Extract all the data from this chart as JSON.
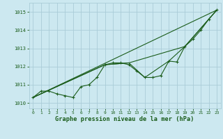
{
  "xlabel": "Graphe pression niveau de la mer (hPa)",
  "xlim": [
    -0.5,
    23.5
  ],
  "ylim": [
    1009.7,
    1015.5
  ],
  "yticks": [
    1010,
    1011,
    1012,
    1013,
    1014,
    1015
  ],
  "xticks": [
    0,
    1,
    2,
    3,
    4,
    5,
    6,
    7,
    8,
    9,
    10,
    11,
    12,
    13,
    14,
    15,
    16,
    17,
    18,
    19,
    20,
    21,
    22,
    23
  ],
  "bg_color": "#cce8f0",
  "grid_color": "#aaccd8",
  "line_color": "#1a5c1a",
  "series1": [
    [
      0,
      1010.3
    ],
    [
      1,
      1010.65
    ],
    [
      2,
      1010.65
    ],
    [
      3,
      1010.5
    ],
    [
      4,
      1010.4
    ],
    [
      5,
      1010.3
    ],
    [
      6,
      1010.9
    ],
    [
      7,
      1011.0
    ],
    [
      8,
      1011.4
    ],
    [
      9,
      1012.1
    ],
    [
      10,
      1012.2
    ],
    [
      11,
      1012.2
    ],
    [
      12,
      1012.1
    ],
    [
      13,
      1011.75
    ],
    [
      14,
      1011.4
    ],
    [
      15,
      1011.4
    ],
    [
      16,
      1011.5
    ],
    [
      17,
      1012.3
    ],
    [
      18,
      1012.25
    ],
    [
      19,
      1013.1
    ],
    [
      20,
      1013.5
    ],
    [
      21,
      1014.0
    ],
    [
      22,
      1014.6
    ],
    [
      23,
      1015.1
    ]
  ],
  "series2": [
    [
      0,
      1010.3
    ],
    [
      23,
      1015.1
    ]
  ],
  "series3": [
    [
      0,
      1010.3
    ],
    [
      9,
      1012.1
    ],
    [
      12,
      1012.2
    ],
    [
      19,
      1013.1
    ],
    [
      23,
      1015.1
    ]
  ],
  "series4": [
    [
      0,
      1010.3
    ],
    [
      9,
      1012.1
    ],
    [
      12,
      1012.2
    ],
    [
      14,
      1011.4
    ],
    [
      17,
      1012.3
    ],
    [
      19,
      1013.1
    ],
    [
      23,
      1015.1
    ]
  ]
}
